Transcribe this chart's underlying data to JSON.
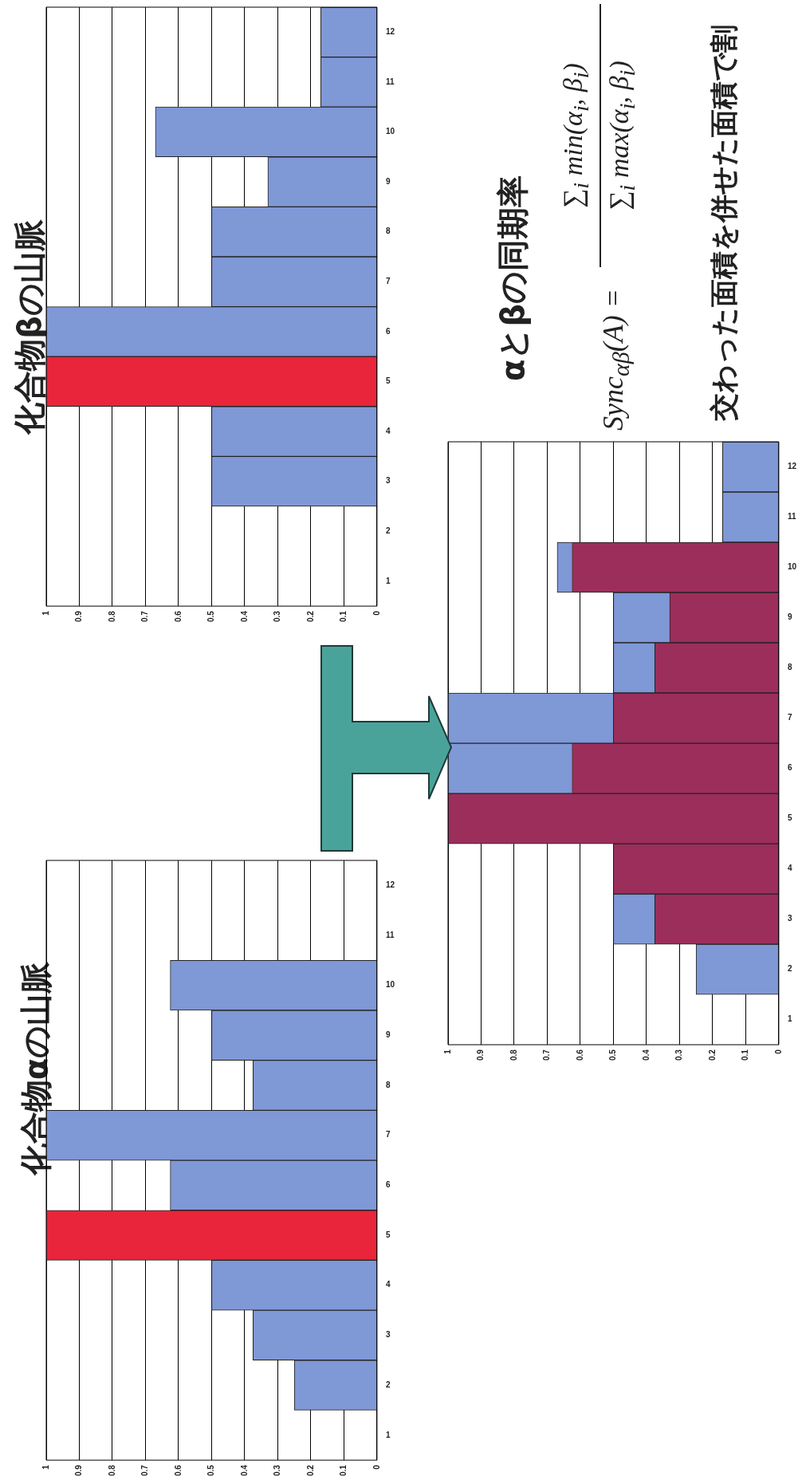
{
  "chart_data": [
    {
      "type": "bar",
      "title": "化合物αの山脈",
      "orientation": "horizontal",
      "categories": [
        "12",
        "11",
        "10",
        "9",
        "8",
        "7",
        "6",
        "5",
        "4",
        "3",
        "2",
        "1"
      ],
      "values": [
        0,
        0,
        0.625,
        0.5,
        0.375,
        1,
        0.625,
        1,
        0.5,
        0.375,
        0.25,
        0
      ],
      "colors": [
        "#7f98d6",
        "#7f98d6",
        "#7f98d6",
        "#7f98d6",
        "#7f98d6",
        "#7f98d6",
        "#7f98d6",
        "#e8253a",
        "#7f98d6",
        "#7f98d6",
        "#7f98d6",
        "#7f98d6"
      ],
      "xlim": [
        1,
        0
      ],
      "xticks": [
        1,
        0.9,
        0.8,
        0.7,
        0.6,
        0.5,
        0.4,
        0.3,
        0.2,
        0.1,
        0
      ],
      "grid": "x"
    },
    {
      "type": "bar",
      "title": "化合物βの山脈",
      "orientation": "horizontal",
      "categories": [
        "12",
        "11",
        "10",
        "9",
        "8",
        "7",
        "6",
        "5",
        "4",
        "3",
        "2",
        "1"
      ],
      "values": [
        0.17,
        0.17,
        0.67,
        0.33,
        0.5,
        0.5,
        1,
        1,
        0.5,
        0.5,
        0,
        0
      ],
      "colors": [
        "#7f98d6",
        "#7f98d6",
        "#7f98d6",
        "#7f98d6",
        "#7f98d6",
        "#7f98d6",
        "#7f98d6",
        "#e8253a",
        "#7f98d6",
        "#7f98d6",
        "#7f98d6",
        "#7f98d6"
      ],
      "xlim": [
        1,
        0
      ],
      "xticks": [
        1,
        0.9,
        0.8,
        0.7,
        0.6,
        0.5,
        0.4,
        0.3,
        0.2,
        0.1,
        0
      ],
      "grid": "x"
    },
    {
      "type": "bar",
      "orientation": "horizontal",
      "stacked": true,
      "categories": [
        "12",
        "11",
        "10",
        "9",
        "8",
        "7",
        "6",
        "5",
        "4",
        "3",
        "2",
        "1"
      ],
      "series": [
        {
          "color": "#9c2e5c",
          "values": [
            0,
            0,
            0.625,
            0.33,
            0.375,
            0.5,
            0.625,
            1,
            0.5,
            0.375,
            0,
            0
          ]
        },
        {
          "color": "#7f98d6",
          "values": [
            0.17,
            0.17,
            0.045,
            0.17,
            0.125,
            0.5,
            0.375,
            0,
            0,
            0.125,
            0.25,
            0
          ]
        }
      ],
      "xlim": [
        1,
        0
      ],
      "xticks": [
        1,
        0.9,
        0.8,
        0.7,
        0.6,
        0.5,
        0.4,
        0.3,
        0.2,
        0.1,
        0
      ],
      "grid": "x"
    },
    {
      "type": "other",
      "title": "αとβの同期率",
      "annotations": [
        "Sync$_{αβ}$(A) =",
        "∑$_{i}$ min(α$_{i}$, β$_{i}$)",
        "∑$_{i}$ max(α$_{i}$, β$_{i}$)",
        "交わった面積を併せた面積で割"
      ]
    }
  ]
}
